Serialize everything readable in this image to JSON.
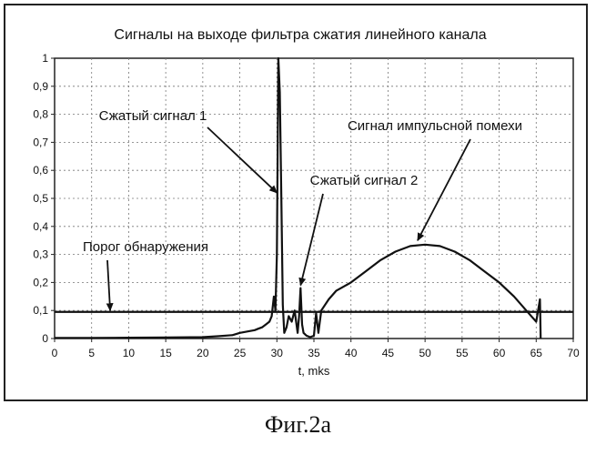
{
  "figure_caption": "Фиг.2а",
  "chart_data": {
    "type": "line",
    "title": "Сигналы на выходе фильтра сжатия линейного канала",
    "xlabel": "t, mks",
    "ylabel": "",
    "xlim": [
      0,
      70
    ],
    "ylim": [
      0,
      1
    ],
    "grid": true,
    "x_ticks": [
      "0",
      "5",
      "10",
      "15",
      "20",
      "25",
      "30",
      "35",
      "40",
      "45",
      "50",
      "55",
      "60",
      "65",
      "70"
    ],
    "y_ticks": [
      "0",
      "0,1",
      "0,2",
      "0,3",
      "0,4",
      "0,5",
      "0,6",
      "0,7",
      "0,8",
      "0,9",
      "1"
    ],
    "series": [
      {
        "name": "",
        "x": [
          0,
          5,
          10,
          15,
          20,
          22,
          24,
          25,
          26,
          27,
          27.5,
          28,
          28.5,
          29,
          29.3,
          29.6,
          29.8,
          30.0,
          30.2,
          30.4,
          30.6,
          30.8,
          31.0,
          31.3,
          31.6,
          32.0,
          32.4,
          32.8,
          33.0,
          33.2,
          33.4,
          33.6,
          34.0,
          34.5,
          35.0,
          35.3,
          35.6,
          36.0,
          37,
          38,
          40,
          42,
          44,
          46,
          48,
          50,
          52,
          54,
          56,
          58,
          60,
          62,
          64,
          65,
          65.5,
          65.6
        ],
        "y": [
          0.002,
          0.002,
          0.003,
          0.004,
          0.005,
          0.008,
          0.012,
          0.02,
          0.025,
          0.03,
          0.035,
          0.04,
          0.05,
          0.06,
          0.08,
          0.15,
          0.1,
          0.3,
          1.0,
          0.88,
          0.5,
          0.12,
          0.02,
          0.04,
          0.08,
          0.06,
          0.1,
          0.02,
          0.08,
          0.18,
          0.05,
          0.02,
          0.01,
          0.005,
          0.01,
          0.09,
          0.02,
          0.1,
          0.14,
          0.17,
          0.2,
          0.24,
          0.28,
          0.31,
          0.33,
          0.335,
          0.33,
          0.31,
          0.28,
          0.24,
          0.2,
          0.15,
          0.09,
          0.06,
          0.14,
          0.0
        ]
      }
    ],
    "threshold": {
      "y": 0.095,
      "label": "Порог обнаружения"
    },
    "annotations": [
      {
        "text": "Сжатый сигнал 1",
        "target_x": 30.0,
        "target_y": 0.52
      },
      {
        "text": "Сжатый сигнал 2",
        "target_x": 33.2,
        "target_y": 0.19
      },
      {
        "text": "Сигнал импульсной помехи",
        "target_x": 49,
        "target_y": 0.35
      },
      {
        "text": "Порог обнаружения",
        "target_x": 7.5,
        "target_y": 0.1
      }
    ]
  }
}
